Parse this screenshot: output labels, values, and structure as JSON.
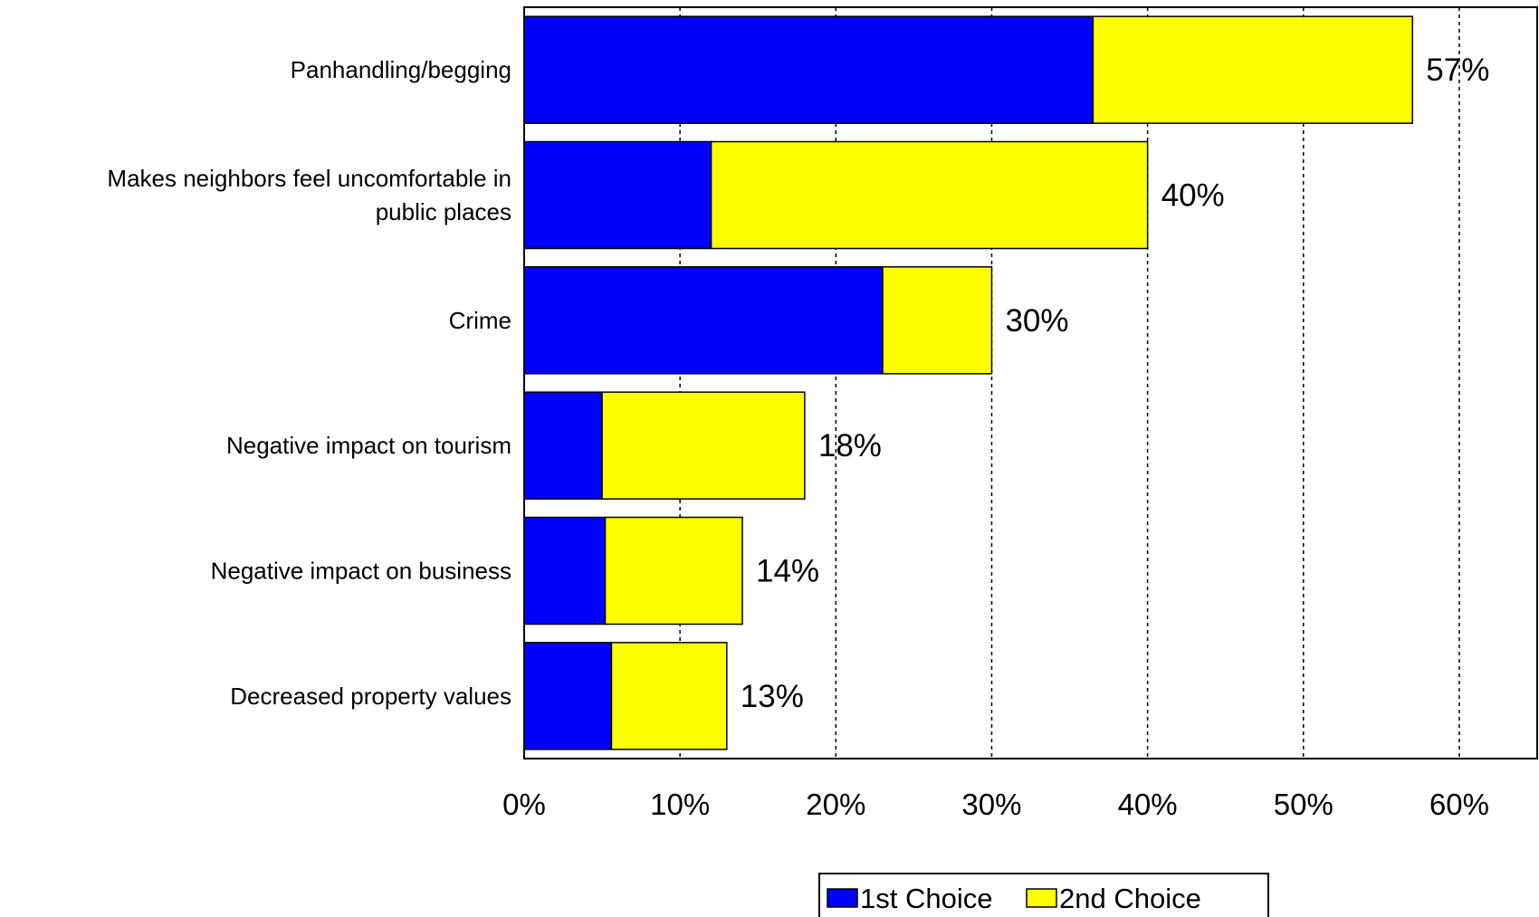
{
  "chart_data": {
    "type": "bar",
    "orientation": "horizontal",
    "stacked": true,
    "categories": [
      [
        "Panhandling/begging"
      ],
      [
        "Makes neighbors feel uncomfortable in",
        "public places"
      ],
      [
        "Crime"
      ],
      [
        "Negative impact on tourism"
      ],
      [
        "Negative impact on business"
      ],
      [
        "Decreased property values"
      ]
    ],
    "series": [
      {
        "name": "1st Choice",
        "color": "#0000FF",
        "values": [
          36.5,
          12,
          23,
          5,
          5.2,
          5.6
        ]
      },
      {
        "name": "2nd Choice",
        "color": "#FFFF00",
        "values": [
          20.5,
          28,
          7,
          13,
          8.8,
          7.4
        ]
      }
    ],
    "totals": [
      "57%",
      "40%",
      "30%",
      "18%",
      "14%",
      "13%"
    ],
    "xlim": [
      0,
      65
    ],
    "xticks": [
      0,
      10,
      20,
      30,
      40,
      50,
      60
    ],
    "xtick_labels": [
      "0%",
      "10%",
      "20%",
      "30%",
      "40%",
      "50%",
      "60%"
    ],
    "grid": "vertical dashed",
    "legend_position": "bottom"
  }
}
